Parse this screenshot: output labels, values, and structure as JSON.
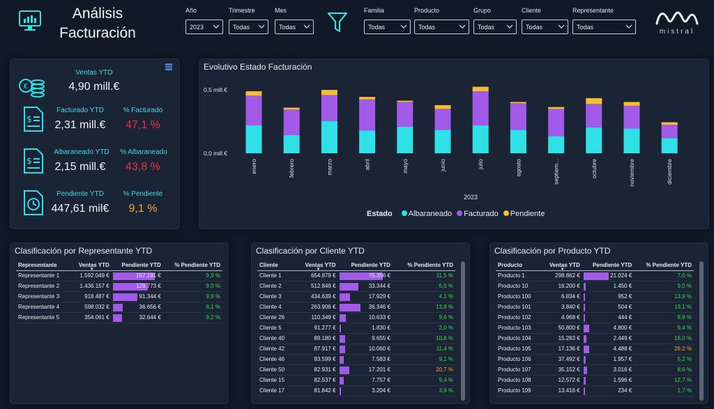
{
  "header": {
    "title_line1": "Análisis",
    "title_line2": "Facturación",
    "filters": [
      {
        "label": "Año",
        "value": "2023"
      },
      {
        "label": "Trimestre",
        "value": "Todas"
      },
      {
        "label": "Mes",
        "value": "Todas"
      },
      {
        "label": "Familia",
        "value": "Todas"
      },
      {
        "label": "Producto",
        "value": "Todas"
      },
      {
        "label": "Grupo",
        "value": "Todas"
      },
      {
        "label": "Cliente",
        "value": "Todas"
      },
      {
        "label": "Representante",
        "value": "Todas"
      }
    ],
    "logo_text": "mistral"
  },
  "kpis": {
    "ventas": {
      "label": "Ventas YTD",
      "value": "4,90 mill.€"
    },
    "facturado": {
      "label": "Facturado YTD",
      "value": "2,31 mill.€",
      "pct_label": "% Facturado",
      "pct_value": "47,1 %"
    },
    "albaraneado": {
      "label": "Albaraneado YTD",
      "value": "2,15 mill.€",
      "pct_label": "% Albaraneado",
      "pct_value": "43,8 %"
    },
    "pendiente": {
      "label": "Pendiente YTD",
      "value": "447,61 mil€",
      "pct_label": "% Pendiente",
      "pct_value": "9,1 %"
    }
  },
  "colors": {
    "albaraneado": "#2fe0e6",
    "facturado": "#a25ae8",
    "pendiente": "#f4c02e",
    "red": "#e8343c",
    "orange": "#f5a833",
    "green": "#3fd55c"
  },
  "chart_data": {
    "type": "bar",
    "stacked": true,
    "title": "Evolutivo Estado Facturación",
    "xlabel": "2023",
    "ylabel": "",
    "y_tick_labels": [
      "0,0 mill.€",
      "0,5 mill.€"
    ],
    "ylim": [
      0,
      0.55
    ],
    "categories": [
      "enero",
      "febrero",
      "marzo",
      "abril",
      "mayo",
      "junio",
      "julio",
      "agosto",
      "septiem...",
      "octubre",
      "noviembre",
      "diciembre"
    ],
    "legend_title": "Estado",
    "legend_position": "bottom",
    "series": [
      {
        "name": "Albaraneado",
        "values": [
          0.22,
          0.145,
          0.255,
          0.18,
          0.21,
          0.185,
          0.22,
          0.185,
          0.135,
          0.205,
          0.195,
          0.12
        ]
      },
      {
        "name": "Facturado",
        "values": [
          0.235,
          0.2,
          0.205,
          0.245,
          0.195,
          0.165,
          0.27,
          0.21,
          0.215,
          0.185,
          0.18,
          0.105
        ]
      },
      {
        "name": "Pendiente",
        "values": [
          0.035,
          0.015,
          0.04,
          0.02,
          0.01,
          0.03,
          0.035,
          0.01,
          0.015,
          0.045,
          0.03,
          0.02
        ]
      }
    ]
  },
  "tables": {
    "representante": {
      "title": "Clasificación por Representante YTD",
      "headers": [
        "Representante",
        "Ventas YTD",
        "Pendiente YTD",
        "% Pendiente YTD"
      ],
      "rows": [
        {
          "name": "Representante 1",
          "ventas": "1.592.049 €",
          "pendiente": "157.191 €",
          "pct": "9,9 %",
          "bar": 1.0
        },
        {
          "name": "Representante 2",
          "ventas": "1.436.157 €",
          "pendiente": "129.773 €",
          "pct": "9,0 %",
          "bar": 0.83
        },
        {
          "name": "Representante 3",
          "ventas": "918.487 €",
          "pendiente": "91.344 €",
          "pct": "9,9 %",
          "bar": 0.58
        },
        {
          "name": "Representante 4",
          "ventas": "598.032 €",
          "pendiente": "36.656 €",
          "pct": "6,1 %",
          "bar": 0.23
        },
        {
          "name": "Representante 5",
          "ventas": "354.061 €",
          "pendiente": "32.644 €",
          "pct": "9,2 %",
          "bar": 0.21
        }
      ]
    },
    "cliente": {
      "title": "Clasificación por Cliente YTD",
      "headers": [
        "Cliente",
        "Ventas YTD",
        "Pendiente YTD",
        "% Pendiente YTD"
      ],
      "rows": [
        {
          "name": "Cliente 1",
          "ventas": "654.879 €",
          "pendiente": "75.356 €",
          "pct": "11,5 %",
          "bar": 1.0
        },
        {
          "name": "Cliente 2",
          "ventas": "512.849 €",
          "pendiente": "33.344 €",
          "pct": "6,5 %",
          "bar": 0.44
        },
        {
          "name": "Cliente 3",
          "ventas": "434.639 €",
          "pendiente": "17.929 €",
          "pct": "4,1 %",
          "bar": 0.24
        },
        {
          "name": "Cliente 4",
          "ventas": "263.906 €",
          "pendiente": "36.346 €",
          "pct": "13,8 %",
          "bar": 0.48
        },
        {
          "name": "Cliente 26",
          "ventas": "110.349 €",
          "pendiente": "10.633 €",
          "pct": "9,6 %",
          "bar": 0.14
        },
        {
          "name": "Cliente 5",
          "ventas": "91.277 €",
          "pendiente": "1.830 €",
          "pct": "2,0 %",
          "bar": 0.03
        },
        {
          "name": "Cliente 40",
          "ventas": "89.180 €",
          "pendiente": "9.655 €",
          "pct": "10,8 %",
          "bar": 0.13
        },
        {
          "name": "Cliente 42",
          "ventas": "87.917 €",
          "pendiente": "10.060 €",
          "pct": "11,4 %",
          "bar": 0.13
        },
        {
          "name": "Cliente 46",
          "ventas": "83.599 €",
          "pendiente": "7.583 €",
          "pct": "9,1 %",
          "bar": 0.1
        },
        {
          "name": "Cliente 50",
          "ventas": "82.931 €",
          "pendiente": "17.201 €",
          "pct": "20,7 %",
          "bar": 0.23
        },
        {
          "name": "Cliente 15",
          "ventas": "82.537 €",
          "pendiente": "7.757 €",
          "pct": "9,4 %",
          "bar": 0.1
        },
        {
          "name": "Cliente 17",
          "ventas": "81.842 €",
          "pendiente": "3.204 €",
          "pct": "3,9 %",
          "bar": 0.04
        }
      ]
    },
    "producto": {
      "title": "Clasificación por Producto YTD",
      "headers": [
        "Producto",
        "Ventas YTD",
        "Pendiente YTD",
        "% Pendiente YTD"
      ],
      "rows": [
        {
          "name": "Producto 1",
          "ventas": "298.862 €",
          "pendiente": "21.024 €",
          "pct": "7,0 %",
          "bar": 1.0
        },
        {
          "name": "Producto 10",
          "ventas": "16.200 €",
          "pendiente": "1.450 €",
          "pct": "9,0 %",
          "bar": 0.07
        },
        {
          "name": "Producto 100",
          "ventas": "6.834 €",
          "pendiente": "952 €",
          "pct": "13,9 %",
          "bar": 0.05
        },
        {
          "name": "Producto 101",
          "ventas": "3.840 €",
          "pendiente": "504 €",
          "pct": "13,1 %",
          "bar": 0.03
        },
        {
          "name": "Producto 102",
          "ventas": "4.968 €",
          "pendiente": "444 €",
          "pct": "8,9 %",
          "bar": 0.02
        },
        {
          "name": "Producto 103",
          "ventas": "50.800 €",
          "pendiente": "4.800 €",
          "pct": "9,4 %",
          "bar": 0.23
        },
        {
          "name": "Producto 104",
          "ventas": "15.283 €",
          "pendiente": "2.449 €",
          "pct": "16,0 %",
          "bar": 0.12
        },
        {
          "name": "Producto 105",
          "ventas": "17.136 €",
          "pendiente": "4.488 €",
          "pct": "26,2 %",
          "bar": 0.21
        },
        {
          "name": "Producto 106",
          "ventas": "37.492 €",
          "pendiente": "1.957 €",
          "pct": "5,2 %",
          "bar": 0.09
        },
        {
          "name": "Producto 107",
          "ventas": "35.152 €",
          "pendiente": "3.016 €",
          "pct": "8,6 %",
          "bar": 0.14
        },
        {
          "name": "Producto 108",
          "ventas": "12.572 €",
          "pendiente": "1.596 €",
          "pct": "12,7 %",
          "bar": 0.08
        },
        {
          "name": "Producto 109",
          "ventas": "13.416 €",
          "pendiente": "234 €",
          "pct": "1,7 %",
          "bar": 0.01
        }
      ]
    }
  }
}
